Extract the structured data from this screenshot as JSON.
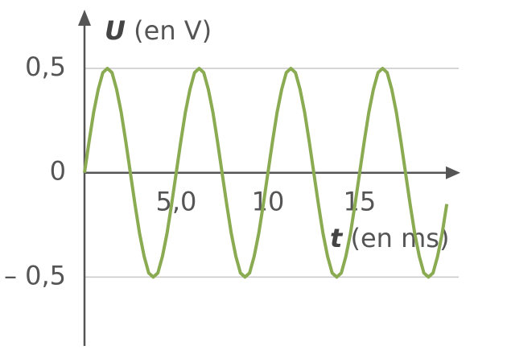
{
  "chart_data": {
    "type": "line",
    "y_label": "U",
    "y_unit": "(en V)",
    "x_label": "t",
    "x_unit": "(en ms)",
    "xlim": [
      0,
      20.4
    ],
    "ylim": [
      -0.83,
      0.77
    ],
    "xticks": [
      {
        "value": 5,
        "label": "5,0"
      },
      10,
      15
    ],
    "yticks": [
      {
        "value": 0.5,
        "label": "0,5"
      },
      0,
      {
        "value": -0.5,
        "label": "– 0,5"
      }
    ],
    "grid": true,
    "series": [
      {
        "color": "#8aab52",
        "x": [
          0,
          0.25,
          0.5,
          0.75,
          1,
          1.25,
          1.5,
          1.75,
          2,
          2.25,
          2.5,
          2.75,
          3,
          3.25,
          3.5,
          3.75,
          4,
          4.25,
          4.5,
          4.75,
          5,
          5.25,
          5.5,
          5.75,
          6,
          6.25,
          6.5,
          6.75,
          7,
          7.25,
          7.5,
          7.75,
          8,
          8.25,
          8.5,
          8.75,
          9,
          9.25,
          9.5,
          9.75,
          10,
          10.25,
          10.5,
          10.75,
          11,
          11.25,
          11.5,
          11.75,
          12,
          12.25,
          12.5,
          12.75,
          13,
          13.25,
          13.5,
          13.75,
          14,
          14.25,
          14.5,
          14.75,
          15,
          15.25,
          15.5,
          15.75,
          16,
          16.25,
          16.5,
          16.75,
          17,
          17.25,
          17.5,
          17.75,
          18,
          18.25,
          18.5,
          18.75,
          19,
          19.25,
          19.5,
          19.75
        ],
        "values": [
          0,
          0.15,
          0.29,
          0.4,
          0.48,
          0.5,
          0.48,
          0.4,
          0.29,
          0.15,
          0,
          -0.15,
          -0.29,
          -0.4,
          -0.48,
          -0.5,
          -0.48,
          -0.4,
          -0.29,
          -0.15,
          0,
          0.15,
          0.29,
          0.4,
          0.48,
          0.5,
          0.48,
          0.4,
          0.29,
          0.15,
          0,
          -0.15,
          -0.29,
          -0.4,
          -0.48,
          -0.5,
          -0.48,
          -0.4,
          -0.29,
          -0.15,
          0,
          0.15,
          0.29,
          0.4,
          0.48,
          0.5,
          0.48,
          0.4,
          0.29,
          0.15,
          0,
          -0.15,
          -0.29,
          -0.4,
          -0.48,
          -0.5,
          -0.48,
          -0.4,
          -0.29,
          -0.15,
          0,
          0.15,
          0.29,
          0.4,
          0.48,
          0.5,
          0.48,
          0.4,
          0.29,
          0.15,
          0,
          -0.15,
          -0.29,
          -0.4,
          -0.48,
          -0.5,
          -0.48,
          -0.4,
          -0.29,
          -0.15
        ]
      }
    ]
  }
}
